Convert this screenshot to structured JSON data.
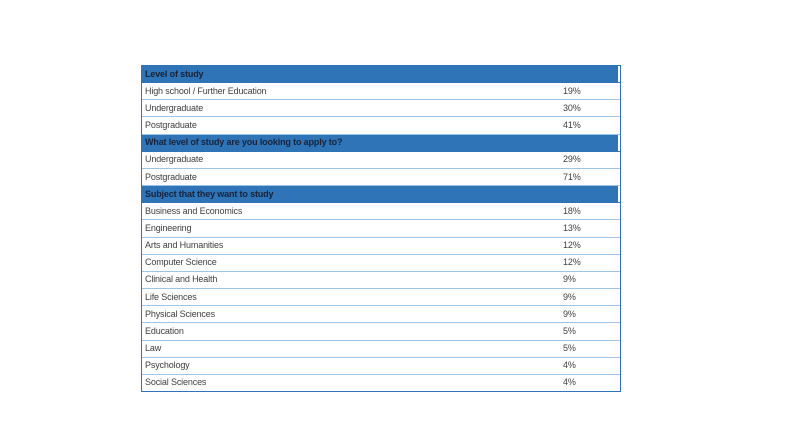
{
  "colors": {
    "section_header_background": "#2E74B6",
    "section_header_text": "#17233B",
    "outer_border": "#2E74B6",
    "row_divider": "#9DC3E6",
    "body_text": "#3F3F3F",
    "page_background": "#FFFFFF"
  },
  "table": {
    "rows": [
      {
        "type": "section",
        "label": "Level of study"
      },
      {
        "type": "item",
        "label": "High school / Further Education",
        "value": "19%"
      },
      {
        "type": "item",
        "label": "Undergraduate",
        "value": "30%"
      },
      {
        "type": "item",
        "label": "Postgraduate",
        "value": "41%"
      },
      {
        "type": "section",
        "label": "What level of study are you looking to apply to?"
      },
      {
        "type": "item",
        "label": "Undergraduate",
        "value": "29%"
      },
      {
        "type": "item",
        "label": "Postgraduate",
        "value": "71%"
      },
      {
        "type": "section",
        "label": "Subject that they want to study"
      },
      {
        "type": "item",
        "label": "Business and Economics",
        "value": "18%"
      },
      {
        "type": "item",
        "label": "Engineering",
        "value": "13%"
      },
      {
        "type": "item",
        "label": "Arts and Humanities",
        "value": "12%"
      },
      {
        "type": "item",
        "label": "Computer Science",
        "value": "12%"
      },
      {
        "type": "item",
        "label": "Clinical and Health",
        "value": "9%"
      },
      {
        "type": "item",
        "label": "Life Sciences",
        "value": "9%"
      },
      {
        "type": "item",
        "label": "Physical Sciences",
        "value": "9%"
      },
      {
        "type": "item",
        "label": "Education",
        "value": "5%"
      },
      {
        "type": "item",
        "label": "Law",
        "value": "5%"
      },
      {
        "type": "item",
        "label": "Psychology",
        "value": "4%"
      },
      {
        "type": "item",
        "label": "Social Sciences",
        "value": "4%"
      }
    ]
  }
}
